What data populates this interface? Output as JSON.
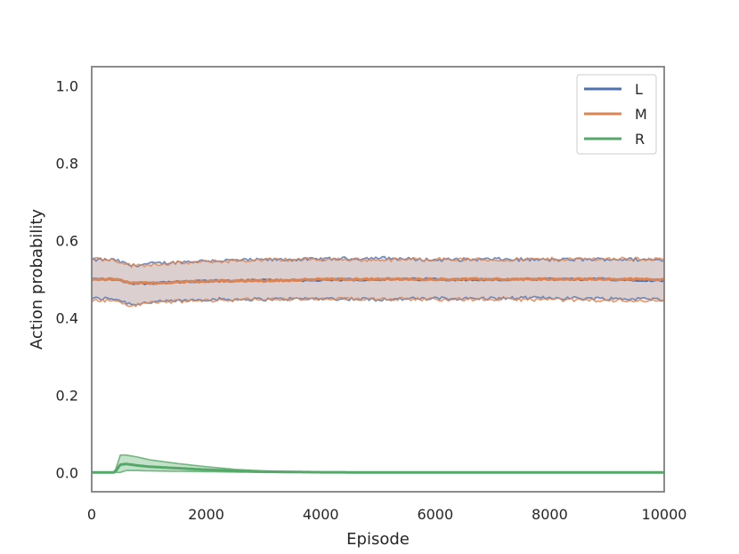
{
  "chart_data": {
    "type": "line",
    "xlabel": "Episode",
    "ylabel": "Action probability",
    "xlim": [
      0,
      10000
    ],
    "ylim": [
      -0.05,
      1.05
    ],
    "x_ticks": [
      "0",
      "2000",
      "4000",
      "6000",
      "8000",
      "10000"
    ],
    "y_ticks": [
      "0.0",
      "0.2",
      "0.4",
      "0.6",
      "0.8",
      "1.0"
    ],
    "grid": false,
    "legend_position": "top-right",
    "series": [
      {
        "name": "L",
        "color": "#4c72b0",
        "x": [
          0,
          400,
          700,
          1000,
          2000,
          3000,
          4000,
          5000,
          6000,
          7000,
          8000,
          9000,
          10000
        ],
        "mean": [
          0.5,
          0.5,
          0.49,
          0.49,
          0.495,
          0.497,
          0.498,
          0.5,
          0.5,
          0.499,
          0.5,
          0.5,
          0.497
        ],
        "upper": [
          0.55,
          0.55,
          0.535,
          0.54,
          0.548,
          0.55,
          0.552,
          0.555,
          0.55,
          0.552,
          0.55,
          0.552,
          0.55
        ],
        "lower": [
          0.45,
          0.45,
          0.435,
          0.44,
          0.448,
          0.448,
          0.45,
          0.448,
          0.45,
          0.45,
          0.452,
          0.45,
          0.448
        ]
      },
      {
        "name": "M",
        "color": "#dd8452",
        "x": [
          0,
          400,
          700,
          1000,
          2000,
          3000,
          4000,
          5000,
          6000,
          7000,
          8000,
          9000,
          10000
        ],
        "mean": [
          0.5,
          0.5,
          0.49,
          0.49,
          0.495,
          0.496,
          0.5,
          0.5,
          0.5,
          0.5,
          0.5,
          0.5,
          0.5
        ],
        "upper": [
          0.555,
          0.55,
          0.535,
          0.538,
          0.545,
          0.55,
          0.552,
          0.55,
          0.552,
          0.55,
          0.552,
          0.553,
          0.552
        ],
        "lower": [
          0.445,
          0.445,
          0.43,
          0.44,
          0.445,
          0.448,
          0.448,
          0.45,
          0.448,
          0.448,
          0.447,
          0.445,
          0.445
        ]
      },
      {
        "name": "R",
        "color": "#55a868",
        "x": [
          0,
          400,
          500,
          600,
          800,
          1000,
          1500,
          2000,
          2500,
          3000,
          4000,
          5000,
          10000
        ],
        "mean": [
          0.0,
          0.0,
          0.02,
          0.022,
          0.018,
          0.015,
          0.011,
          0.007,
          0.004,
          0.002,
          0.0005,
          0.0,
          0.0
        ],
        "upper": [
          0.0,
          0.0,
          0.045,
          0.045,
          0.04,
          0.033,
          0.023,
          0.015,
          0.008,
          0.004,
          0.001,
          0.0,
          0.0
        ],
        "lower": [
          0.0,
          0.0,
          0.0,
          0.005,
          0.005,
          0.004,
          0.003,
          0.002,
          0.001,
          0.0,
          0.0,
          0.0,
          0.0
        ]
      }
    ]
  }
}
